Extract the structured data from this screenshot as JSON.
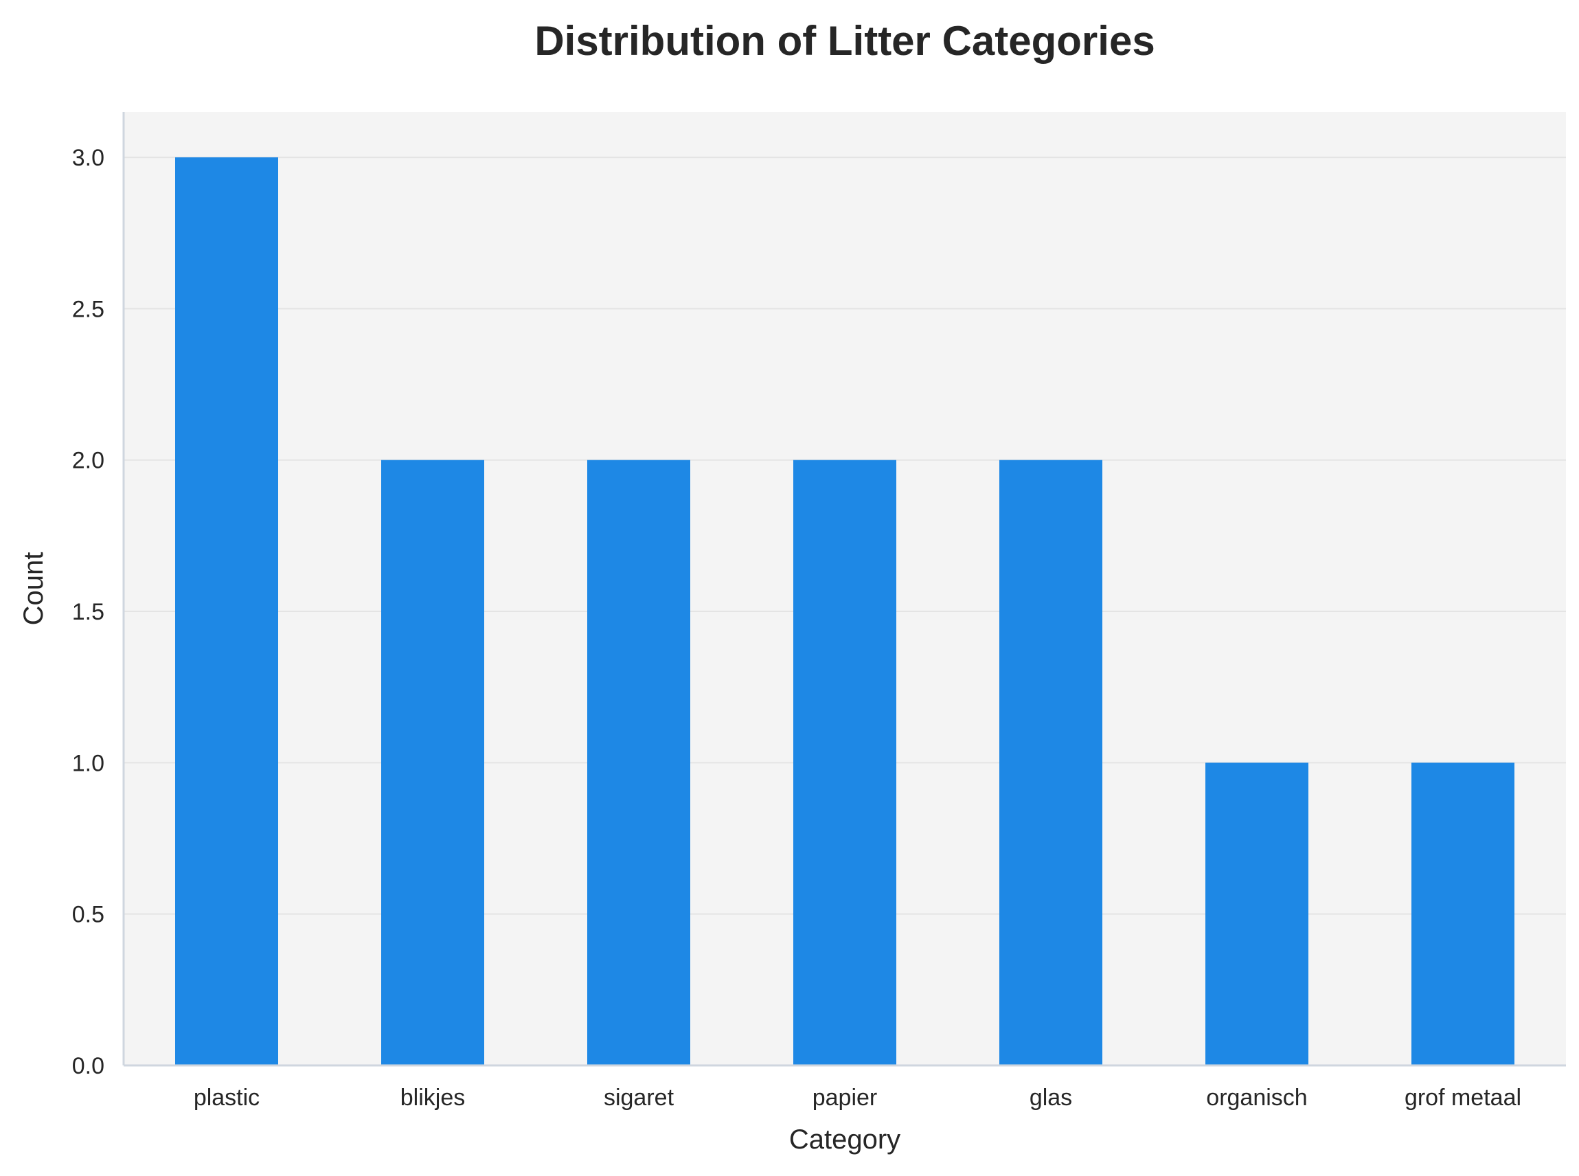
{
  "chart_data": {
    "type": "bar",
    "title": "Distribution of Litter Categories",
    "xlabel": "Category",
    "ylabel": "Count",
    "categories": [
      "plastic",
      "blikjes",
      "sigaret",
      "papier",
      "glas",
      "organisch",
      "grof metaal"
    ],
    "values": [
      3,
      2,
      2,
      2,
      2,
      1,
      1
    ],
    "ylim": [
      0,
      3.15
    ],
    "yticks": [
      0.0,
      0.5,
      1.0,
      1.5,
      2.0,
      2.5,
      3.0
    ],
    "ytick_labels": [
      "0.0",
      "0.5",
      "1.0",
      "1.5",
      "2.0",
      "2.5",
      "3.0"
    ],
    "grid": "horizontal",
    "legend": "none",
    "colors": {
      "bar": "#1e88e5",
      "plot_background": "#f4f4f4",
      "gridline": "#e4e4e4",
      "spine": "#cfd6df",
      "text": "#262626"
    }
  }
}
